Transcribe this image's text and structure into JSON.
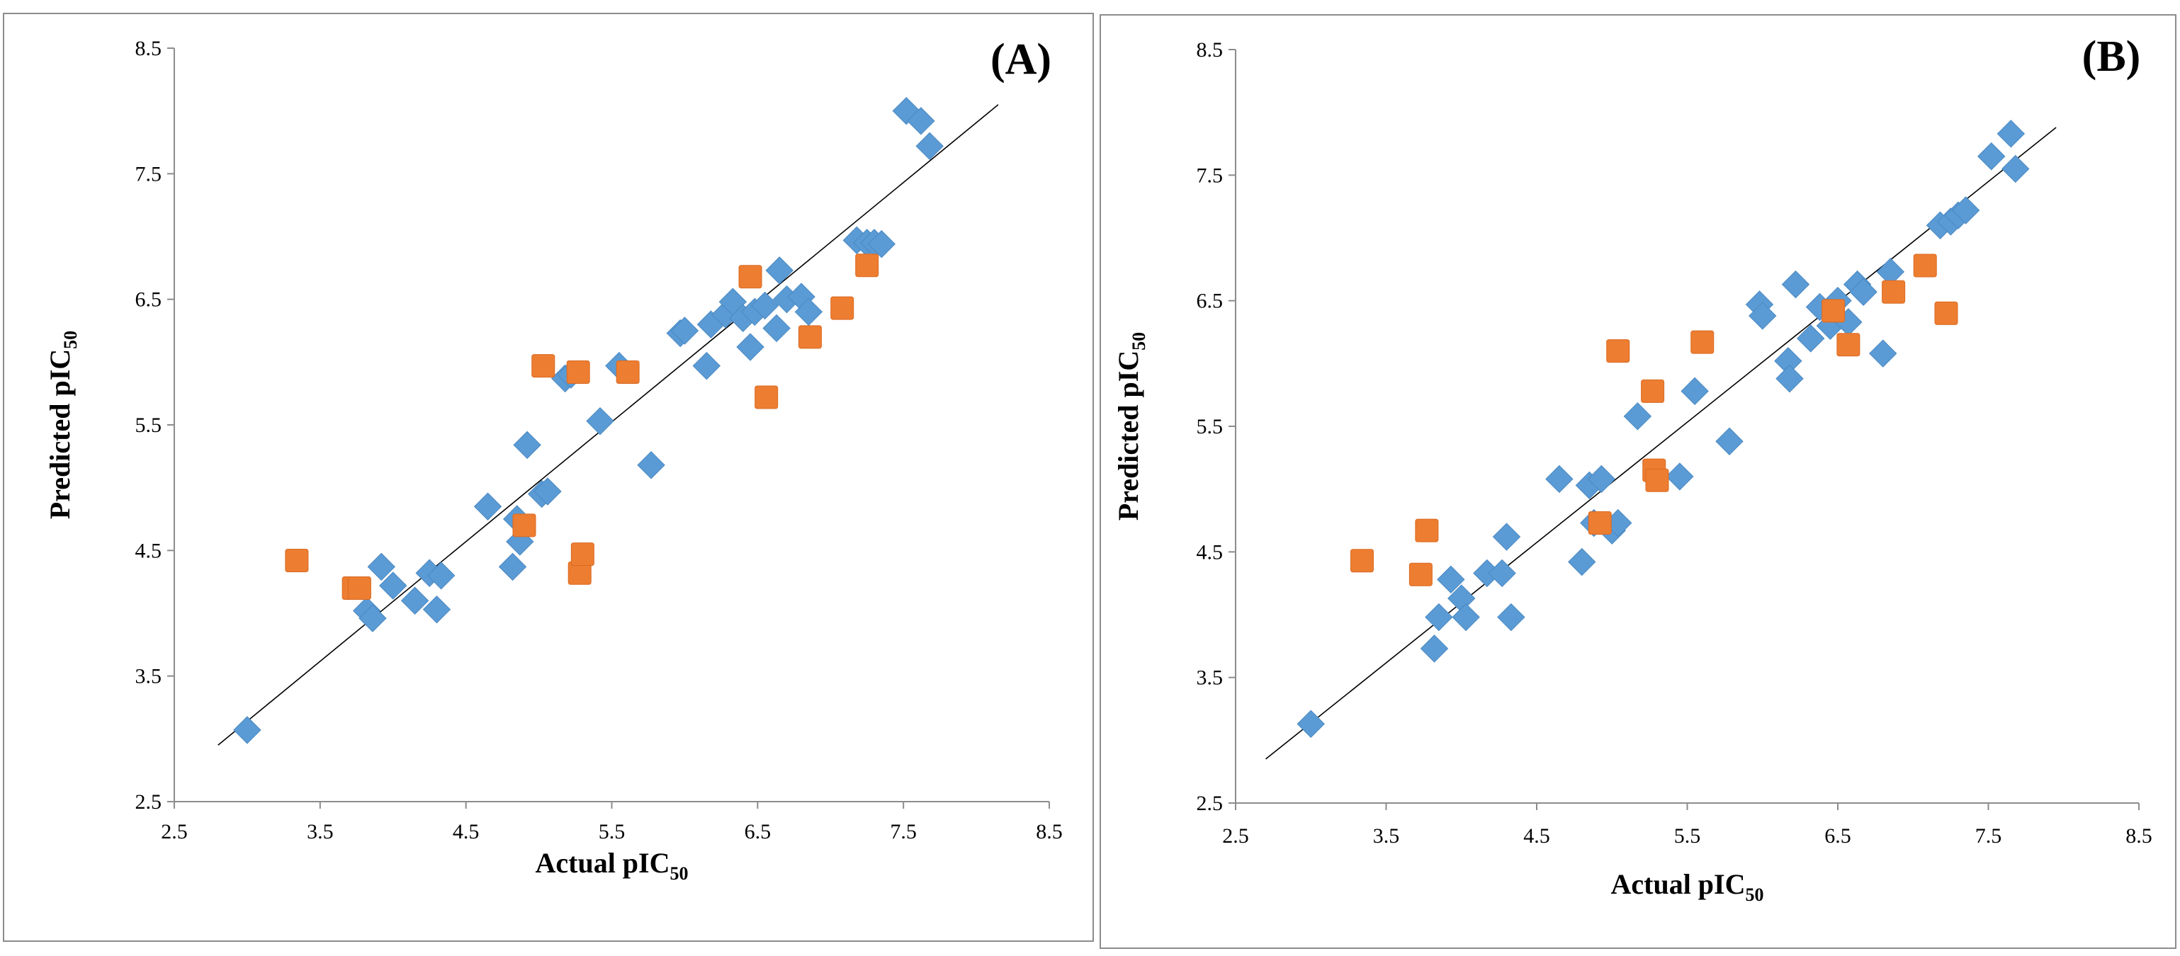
{
  "colors": {
    "training": "#5b9bd5",
    "test": "#ed7d31",
    "axis": "#8c8c8c",
    "regression_line": "#000000"
  },
  "chart_data": [
    {
      "type": "scatter",
      "panel_label": "(A)",
      "xlabel": {
        "main": "Actual pIC",
        "sub": "50"
      },
      "ylabel": {
        "main": "Predicted pIC",
        "sub": "50"
      },
      "xlim": [
        2.5,
        8.5
      ],
      "ylim": [
        2.5,
        8.5
      ],
      "xticks": [
        "2.5",
        "3.5",
        "4.5",
        "5.5",
        "6.5",
        "7.5",
        "8.5"
      ],
      "yticks": [
        "2.5",
        "3.5",
        "4.5",
        "5.5",
        "6.5",
        "7.5",
        "8.5"
      ],
      "grid": false,
      "trendline": {
        "x": [
          2.8,
          8.15
        ],
        "y": [
          2.95,
          8.05
        ]
      },
      "series": [
        {
          "marker": "diamond",
          "color": "#5b9bd5",
          "points": [
            [
              3.0,
              3.07
            ],
            [
              3.82,
              4.02
            ],
            [
              3.86,
              3.96
            ],
            [
              3.92,
              4.37
            ],
            [
              4.0,
              4.22
            ],
            [
              4.15,
              4.1
            ],
            [
              4.25,
              4.32
            ],
            [
              4.3,
              4.03
            ],
            [
              4.33,
              4.3
            ],
            [
              4.65,
              4.85
            ],
            [
              4.82,
              4.37
            ],
            [
              4.85,
              4.75
            ],
            [
              4.87,
              4.57
            ],
            [
              4.92,
              5.34
            ],
            [
              5.02,
              4.95
            ],
            [
              5.06,
              4.97
            ],
            [
              5.18,
              5.87
            ],
            [
              5.22,
              5.9
            ],
            [
              5.42,
              5.53
            ],
            [
              5.55,
              5.97
            ],
            [
              5.77,
              5.18
            ],
            [
              5.97,
              6.23
            ],
            [
              6.0,
              6.25
            ],
            [
              6.15,
              5.97
            ],
            [
              6.18,
              6.3
            ],
            [
              6.28,
              6.38
            ],
            [
              6.33,
              6.48
            ],
            [
              6.4,
              6.35
            ],
            [
              6.45,
              6.12
            ],
            [
              6.48,
              6.4
            ],
            [
              6.55,
              6.45
            ],
            [
              6.63,
              6.27
            ],
            [
              6.65,
              6.73
            ],
            [
              6.7,
              6.5
            ],
            [
              6.8,
              6.52
            ],
            [
              6.85,
              6.4
            ],
            [
              7.18,
              6.97
            ],
            [
              7.25,
              6.95
            ],
            [
              7.3,
              6.95
            ],
            [
              7.35,
              6.94
            ],
            [
              7.52,
              8.0
            ],
            [
              7.62,
              7.92
            ],
            [
              7.68,
              7.72
            ]
          ]
        },
        {
          "marker": "square",
          "color": "#ed7d31",
          "points": [
            [
              3.34,
              4.42
            ],
            [
              3.73,
              4.2
            ],
            [
              3.77,
              4.2
            ],
            [
              4.9,
              4.7
            ],
            [
              5.03,
              5.97
            ],
            [
              5.27,
              5.92
            ],
            [
              5.28,
              4.32
            ],
            [
              5.3,
              4.47
            ],
            [
              5.61,
              5.92
            ],
            [
              6.45,
              6.68
            ],
            [
              6.56,
              5.72
            ],
            [
              6.86,
              6.2
            ],
            [
              7.08,
              6.43
            ],
            [
              7.25,
              6.77
            ]
          ]
        }
      ]
    },
    {
      "type": "scatter",
      "panel_label": "(B)",
      "xlabel": {
        "main": "Actual pIC",
        "sub": "50"
      },
      "ylabel": {
        "main": "Predicted pIC",
        "sub": "50"
      },
      "xlim": [
        2.5,
        8.5
      ],
      "ylim": [
        2.5,
        8.5
      ],
      "xticks": [
        "2.5",
        "3.5",
        "4.5",
        "5.5",
        "6.5",
        "7.5",
        "8.5"
      ],
      "yticks": [
        "2.5",
        "3.5",
        "4.5",
        "5.5",
        "6.5",
        "7.5",
        "8.5"
      ],
      "grid": false,
      "trendline": {
        "x": [
          2.7,
          7.95
        ],
        "y": [
          2.85,
          7.88
        ]
      },
      "series": [
        {
          "marker": "diamond",
          "color": "#5b9bd5",
          "points": [
            [
              3.0,
              3.13
            ],
            [
              3.82,
              3.73
            ],
            [
              3.85,
              3.98
            ],
            [
              3.93,
              4.28
            ],
            [
              4.0,
              4.13
            ],
            [
              4.03,
              3.98
            ],
            [
              4.17,
              4.33
            ],
            [
              4.27,
              4.33
            ],
            [
              4.3,
              4.62
            ],
            [
              4.33,
              3.98
            ],
            [
              4.65,
              5.08
            ],
            [
              4.8,
              4.42
            ],
            [
              4.85,
              5.03
            ],
            [
              4.88,
              4.73
            ],
            [
              4.93,
              5.08
            ],
            [
              5.0,
              4.67
            ],
            [
              5.04,
              4.73
            ],
            [
              5.17,
              5.58
            ],
            [
              5.45,
              5.1
            ],
            [
              5.55,
              5.78
            ],
            [
              5.78,
              5.38
            ],
            [
              5.98,
              6.47
            ],
            [
              6.0,
              6.38
            ],
            [
              6.17,
              6.02
            ],
            [
              6.18,
              5.88
            ],
            [
              6.22,
              6.63
            ],
            [
              6.32,
              6.2
            ],
            [
              6.38,
              6.45
            ],
            [
              6.45,
              6.3
            ],
            [
              6.5,
              6.5
            ],
            [
              6.57,
              6.33
            ],
            [
              6.63,
              6.63
            ],
            [
              6.67,
              6.57
            ],
            [
              6.8,
              6.08
            ],
            [
              6.85,
              6.73
            ],
            [
              7.18,
              7.1
            ],
            [
              7.25,
              7.13
            ],
            [
              7.3,
              7.18
            ],
            [
              7.35,
              7.22
            ],
            [
              7.52,
              7.65
            ],
            [
              7.65,
              7.83
            ],
            [
              7.68,
              7.55
            ]
          ]
        },
        {
          "marker": "square",
          "color": "#ed7d31",
          "points": [
            [
              3.34,
              4.43
            ],
            [
              3.73,
              4.32
            ],
            [
              3.77,
              4.67
            ],
            [
              4.92,
              4.73
            ],
            [
              5.04,
              6.1
            ],
            [
              5.27,
              5.78
            ],
            [
              5.28,
              5.15
            ],
            [
              5.3,
              5.07
            ],
            [
              5.6,
              6.17
            ],
            [
              6.47,
              6.42
            ],
            [
              6.57,
              6.15
            ],
            [
              6.87,
              6.57
            ],
            [
              7.08,
              6.78
            ],
            [
              7.22,
              6.4
            ]
          ]
        }
      ]
    }
  ]
}
